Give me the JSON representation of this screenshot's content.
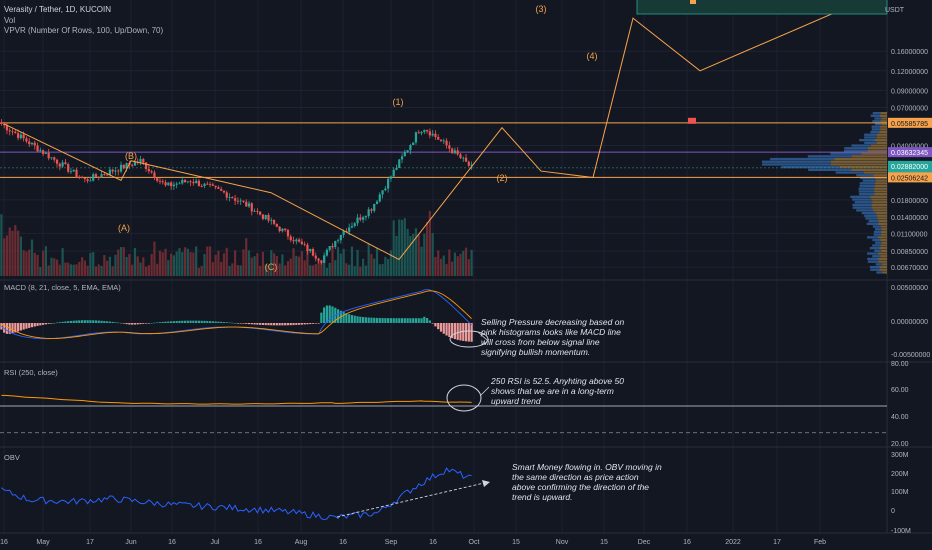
{
  "header": {
    "symbol_title": "Verasity / Tether, 1D, KUCOIN",
    "vol_label": "Vol",
    "vpvr_label": "VPVR (Number Of Rows, 100, Up/Down, 70)"
  },
  "currency": "USDT",
  "colors": {
    "background": "#131722",
    "up": "#26a69a",
    "down": "#ef5350",
    "wave": "#f7a34b",
    "macd": "#2962ff",
    "signal": "#ff9800",
    "rsi": "#ff9800",
    "obv": "#2962ff",
    "resistance": "#f7a34b",
    "midline": "#7e57c2"
  },
  "price_axis": {
    "labels": [
      "0.16000000",
      "0.12000000",
      "0.09000000",
      "0.07000000",
      "0.04000000",
      "0.01800000",
      "0.01400000",
      "0.01100000",
      "0.00850000",
      "0.00670000"
    ],
    "badges": [
      {
        "text": "0.05585785",
        "kind": "resistance"
      },
      {
        "text": "0.03632345",
        "kind": "midline"
      },
      {
        "text": "0.02882000",
        "kind": "last"
      },
      {
        "text": "11:42:54",
        "kind": "countdown"
      },
      {
        "text": "0.02506242",
        "kind": "support"
      }
    ]
  },
  "waves": {
    "labels": [
      "(A)",
      "(B)",
      "(C)",
      "(1)",
      "(2)",
      "(3)",
      "(4)"
    ]
  },
  "macd": {
    "title": "MACD (8, 21, close, 5, EMA, EMA)",
    "axis": [
      "0.00500000",
      "0.00000000",
      "-0.00500000"
    ],
    "note": "Selling Pressure decreasing based on pink histograms looks like MACD line will cross from below signal line signifying bullish momentum."
  },
  "rsi": {
    "title": "RSI (250, close)",
    "axis": [
      "80.00",
      "60.00",
      "40.00",
      "20.00"
    ],
    "note": "250 RSI is 52.5. Anyhting above 50 shows that we are in a long-term upward trend"
  },
  "obv": {
    "title": "OBV",
    "axis": [
      "300M",
      "200M",
      "100M",
      "0",
      "-100M"
    ],
    "note": "Smart Money flowing in. OBV moving in the same direction as price action above confirming the direction of the trend is upward."
  },
  "time_axis": [
    "16",
    "May",
    "17",
    "Jun",
    "16",
    "Jul",
    "16",
    "Aug",
    "16",
    "Sep",
    "16",
    "Oct",
    "15",
    "Nov",
    "15",
    "Dec",
    "16",
    "2022",
    "17",
    "Feb"
  ],
  "chart_data": [
    {
      "type": "line",
      "title": "Verasity / Tether, 1D, KUCOIN",
      "x": [
        "Apr 16",
        "May 17",
        "Jun 2",
        "Jun 20",
        "Jul 22",
        "Sep 6",
        "Sep 30",
        "Oct 15",
        "Nov 2",
        "Dec 16",
        "Feb 18"
      ],
      "series": [
        {
          "values": [
            0.055,
            0.024,
            0.032,
            0.02,
            0.0075,
            0.052,
            0.0275,
            0.025,
            0.26,
            0.12,
            0.4
          ]
        }
      ],
      "ylim": [
        0.006,
        0.4
      ],
      "scale": "log",
      "horizontal_levels": [
        0.05585785,
        0.03632345,
        0.02506242
      ],
      "last_price": 0.02882
    },
    {
      "type": "bar",
      "title": "MACD (8, 21, close, 5, EMA, EMA)",
      "ylim": [
        -0.0055,
        0.0055
      ]
    },
    {
      "type": "line",
      "title": "RSI (250, close)",
      "ylim": [
        20,
        80
      ],
      "last_value": 52.5
    },
    {
      "type": "line",
      "title": "OBV",
      "ylim": [
        -100,
        300
      ]
    }
  ]
}
